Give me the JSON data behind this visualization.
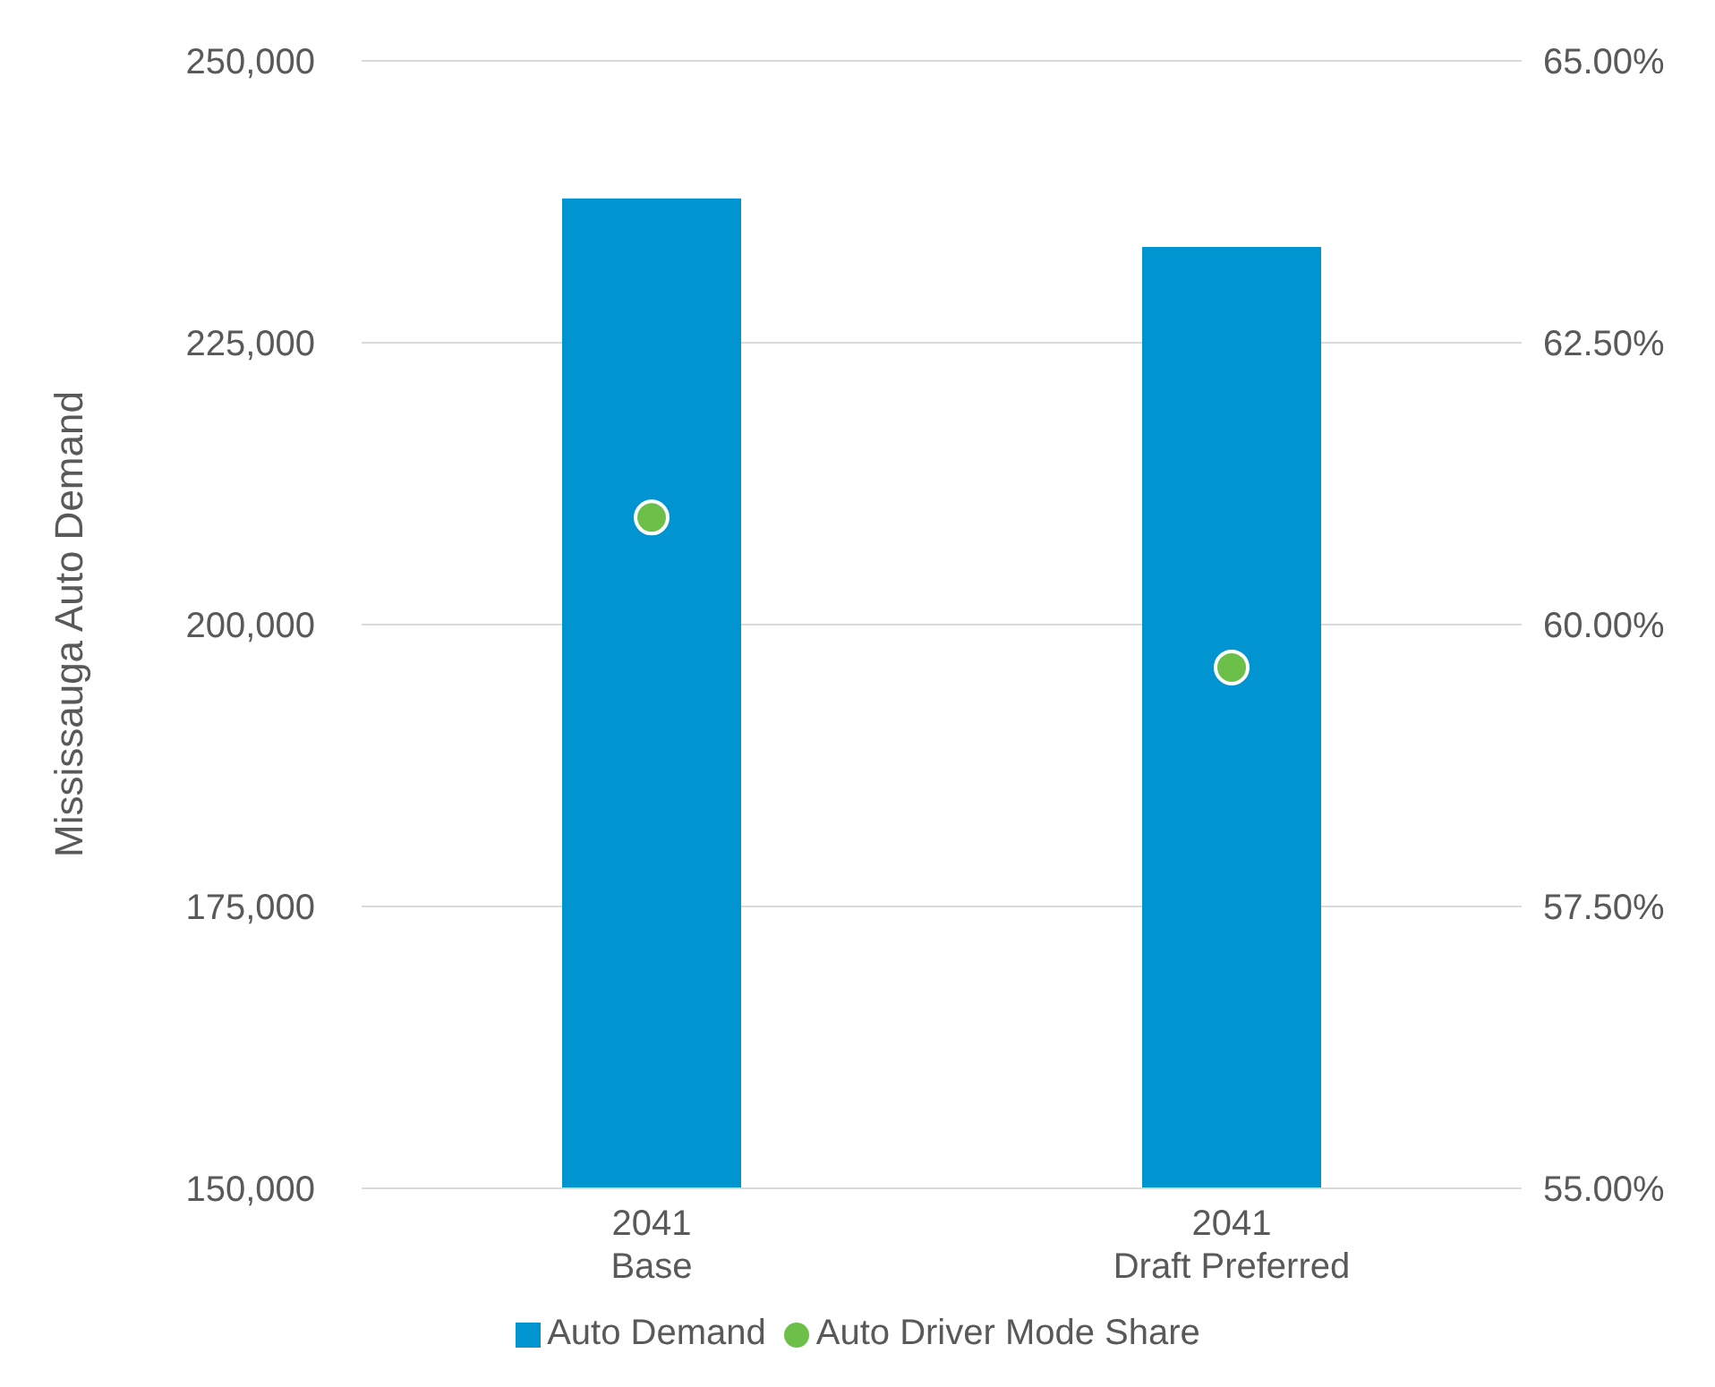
{
  "chart_data": {
    "type": "bar",
    "ylabel": "Mississauga Auto Demand",
    "categories": [
      "2041\nBase",
      "2041\nDraft Preferred"
    ],
    "series": [
      {
        "name": "Auto Demand",
        "color": "#0094d0",
        "values": [
          237800,
          233500
        ]
      },
      {
        "name": "Auto Driver Mode Share",
        "type": "scatter",
        "axis": "y2",
        "color": "#6cc04a",
        "values": [
          60.95,
          59.62
        ]
      }
    ],
    "ylim": [
      150000,
      250000
    ],
    "yticks": [
      {
        "value": 150000,
        "label": "150,000"
      },
      {
        "value": 175000,
        "label": "175,000"
      },
      {
        "value": 200000,
        "label": "200,000"
      },
      {
        "value": 225000,
        "label": "225,000"
      },
      {
        "value": 250000,
        "label": "250,000"
      }
    ],
    "y2lim": [
      55,
      65
    ],
    "y2ticks": [
      {
        "value": 55,
        "label": "55.00%"
      },
      {
        "value": 57.5,
        "label": "57.50%"
      },
      {
        "value": 60,
        "label": "60.00%"
      },
      {
        "value": 62.5,
        "label": "62.50%"
      },
      {
        "value": 65,
        "label": "65.00%"
      }
    ],
    "grid": "y",
    "legend": "bottom",
    "marker": "circle"
  }
}
